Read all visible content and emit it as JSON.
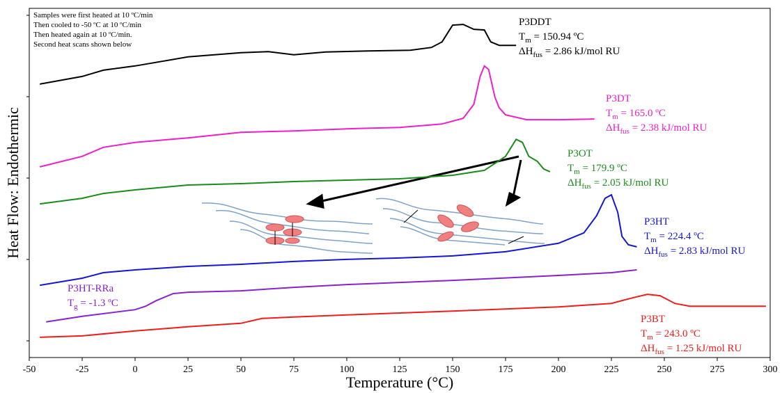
{
  "chart_data": {
    "type": "line",
    "x_label": "Temperature (°C)",
    "y_label": "Heat Flow: Endothermic",
    "xlim": [
      -50,
      300
    ],
    "xticks": [
      -50,
      -25,
      0,
      25,
      50,
      75,
      100,
      125,
      150,
      175,
      200,
      225,
      250,
      275,
      300
    ],
    "ylim": [
      0,
      100
    ],
    "note": [
      "Samples were first heated at 10 ºC/min",
      "Then cooled to -50 ºC at 10 ºC/min",
      "Then heated again at 10 ºC/min.",
      "Second heat scans shown below"
    ],
    "series": [
      {
        "name": "P3DDT",
        "color": "#000000",
        "x": [
          -45,
          -25,
          -15,
          0,
          25,
          50,
          63,
          75,
          90,
          110,
          130,
          140,
          145,
          150,
          155,
          160,
          165,
          168,
          172,
          180
        ],
        "values": [
          78.3,
          80.5,
          82.3,
          83.5,
          86.1,
          87.3,
          87.6,
          86.7,
          87.5,
          87.8,
          88.0,
          88.8,
          90.4,
          95.2,
          95.4,
          94.0,
          93.8,
          90.4,
          89.4,
          89.4
        ],
        "labels": [
          {
            "main": "T",
            "sub": "m",
            "rest": " = 150.94 ºC"
          },
          {
            "main": "ΔH",
            "sub": "fus",
            "rest": " = 2.86 kJ/mol RU"
          }
        ]
      },
      {
        "name": "P3DT",
        "color": "#ee1fc8",
        "x": [
          -45,
          -25,
          -15,
          0,
          25,
          50,
          75,
          100,
          125,
          145,
          155,
          160,
          163,
          165,
          167,
          170,
          172,
          175,
          185,
          200,
          217
        ],
        "values": [
          54.6,
          57.6,
          60.2,
          61.6,
          62.9,
          64.5,
          64.9,
          65.5,
          65.9,
          66.9,
          68.5,
          72.5,
          80.5,
          83.5,
          82.5,
          74.5,
          71.5,
          69.5,
          68.1,
          68.1,
          68.3
        ],
        "labels": [
          {
            "main": "T",
            "sub": "m",
            "rest": " = 165.0 ºC"
          },
          {
            "main": "ΔH",
            "sub": "fus",
            "rest": " = 2.38 kJ/mol RU"
          }
        ]
      },
      {
        "name": "P3OT",
        "color": "#1a8c1a",
        "x": [
          -45,
          -25,
          -15,
          0,
          25,
          50,
          75,
          100,
          125,
          150,
          165,
          175,
          180,
          183,
          186,
          190,
          193,
          196
        ],
        "values": [
          44.0,
          45.6,
          47.0,
          48.0,
          49.4,
          49.8,
          50.4,
          50.8,
          51.2,
          52.2,
          53.6,
          57.6,
          62.5,
          61.6,
          57.6,
          56.2,
          54.0,
          53.2
        ],
        "labels": [
          {
            "main": "T",
            "sub": "m",
            "rest": " = 179.9 ºC"
          },
          {
            "main": "ΔH",
            "sub": "fus",
            "rest": " = 2.05 kJ/mol RU"
          }
        ]
      },
      {
        "name": "P3HT",
        "color": "#1515d6",
        "x": [
          -45,
          -25,
          -15,
          0,
          25,
          50,
          75,
          100,
          125,
          150,
          175,
          200,
          212,
          218,
          222,
          225,
          228,
          230,
          233,
          237
        ],
        "values": [
          20.7,
          22.7,
          24.3,
          25.1,
          26.1,
          26.7,
          27.5,
          28.1,
          28.5,
          29.1,
          30.3,
          32.7,
          35.7,
          40.6,
          45.6,
          46.6,
          41.6,
          34.7,
          32.3,
          31.7
        ],
        "labels": [
          {
            "main": "T",
            "sub": "m",
            "rest": " = 224.4 ºC"
          },
          {
            "main": "ΔH",
            "sub": "fus",
            "rest": " = 2.83 kJ/mol RU"
          }
        ]
      },
      {
        "name": "P3HT-RRa",
        "color": "#8a22cc",
        "x": [
          -42,
          -25,
          0,
          5,
          10,
          18,
          25,
          50,
          75,
          100,
          150,
          200,
          225,
          237
        ],
        "values": [
          10.2,
          11.8,
          13.7,
          14.7,
          16.3,
          18.3,
          18.7,
          19.1,
          20.1,
          20.9,
          22.1,
          23.5,
          24.3,
          25.1
        ],
        "labels": [
          {
            "main": "T",
            "sub": "g",
            "rest": " = -1.3 ºC"
          }
        ]
      },
      {
        "name": "P3BT",
        "color": "#ee1c1c",
        "x": [
          -45,
          -25,
          0,
          25,
          50,
          60,
          75,
          100,
          150,
          200,
          225,
          235,
          242,
          248,
          255,
          262,
          275,
          298
        ],
        "values": [
          5.8,
          6.2,
          7.6,
          8.8,
          9.8,
          11.2,
          11.6,
          12.2,
          13.3,
          14.5,
          15.5,
          17.1,
          18.1,
          17.7,
          15.5,
          14.7,
          14.7,
          14.7
        ],
        "labels": [
          {
            "main": "T",
            "sub": "m",
            "rest": " = 243.0 ºC"
          },
          {
            "main": "ΔH",
            "sub": "fus",
            "rest": " = 1.25 kJ/mol RU"
          }
        ]
      }
    ]
  }
}
